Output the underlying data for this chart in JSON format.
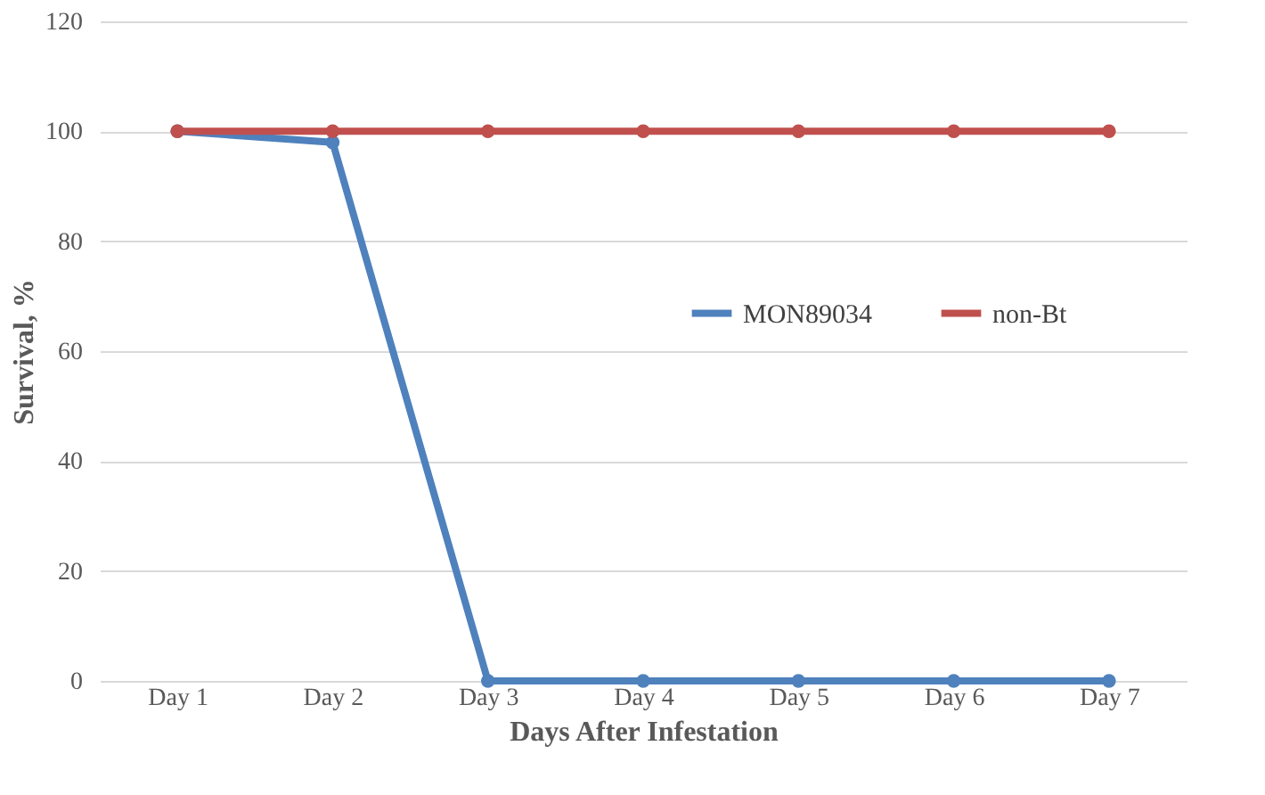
{
  "chart_data": {
    "type": "line",
    "xlabel": "Days After Infestation",
    "ylabel": "Survival, %",
    "categories": [
      "Day 1",
      "Day 2",
      "Day 3",
      "Day 4",
      "Day 5",
      "Day 6",
      "Day 7"
    ],
    "series": [
      {
        "name": "MON89034",
        "color": "#4f81bd",
        "values": [
          100,
          98,
          0,
          0,
          0,
          0,
          0
        ]
      },
      {
        "name": "non-Bt",
        "color": "#c0504d",
        "values": [
          100,
          100,
          100,
          100,
          100,
          100,
          100
        ]
      }
    ],
    "ylim": [
      0,
      120
    ],
    "yticks": [
      0,
      20,
      40,
      60,
      80,
      100,
      120
    ],
    "grid": "y",
    "legend": "right",
    "marker": "circle",
    "line_style": "solid"
  }
}
